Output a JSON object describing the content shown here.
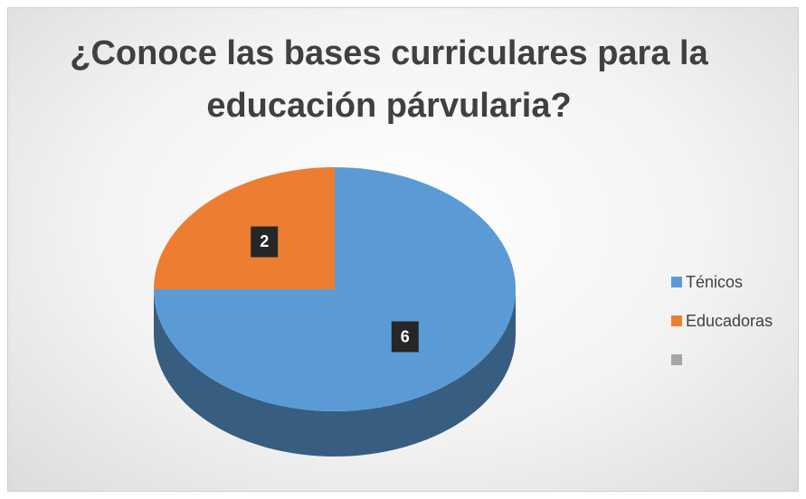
{
  "chart_data": {
    "type": "pie",
    "title": "¿Conoce las bases curriculares para la educación párvularia?",
    "categories": [
      "Ténicos",
      "Educadoras",
      null
    ],
    "values": [
      6,
      2,
      null
    ],
    "colors": [
      "#5b9bd5",
      "#ed7d31",
      "#a5a5a5"
    ],
    "legend": "right"
  }
}
